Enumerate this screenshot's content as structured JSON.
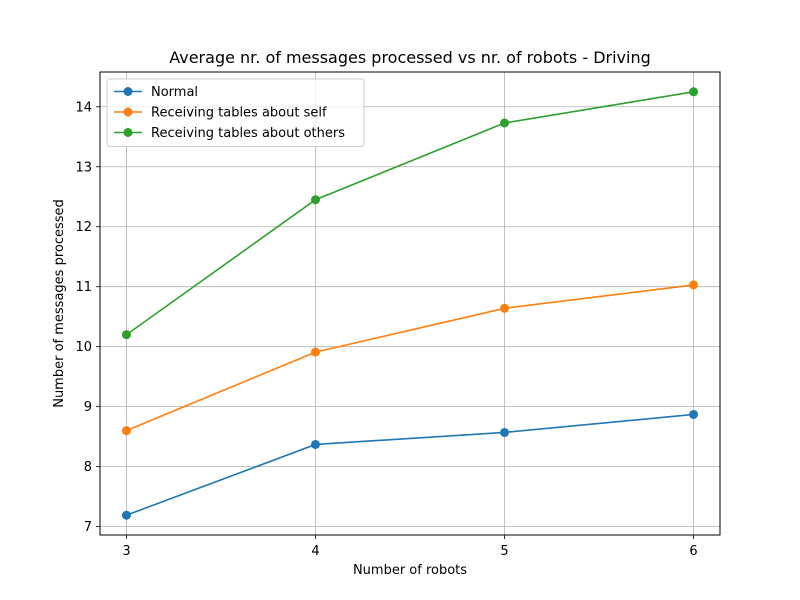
{
  "chart_data": {
    "type": "line",
    "title": "Average nr. of messages processed vs nr. of robots - Driving",
    "xlabel": "Number of robots",
    "ylabel": "Number of messages processed",
    "x": [
      3,
      4,
      5,
      6
    ],
    "xlim": [
      2.86,
      6.14
    ],
    "ylim": [
      6.86,
      14.58
    ],
    "xticks": [
      "3",
      "4",
      "5",
      "6"
    ],
    "yticks": [
      "7",
      "8",
      "9",
      "10",
      "11",
      "12",
      "13",
      "14"
    ],
    "grid": true,
    "legend_position": "top-left",
    "series": [
      {
        "name": "Normal",
        "color": "#1f77b4",
        "values": [
          7.19,
          8.37,
          8.57,
          8.87
        ]
      },
      {
        "name": "Receiving tables about self",
        "color": "#ff7f0e",
        "values": [
          8.6,
          9.91,
          10.64,
          11.03
        ]
      },
      {
        "name": "Receiving tables about others",
        "color": "#2ca02c",
        "values": [
          10.2,
          12.45,
          13.73,
          14.25
        ]
      }
    ]
  }
}
